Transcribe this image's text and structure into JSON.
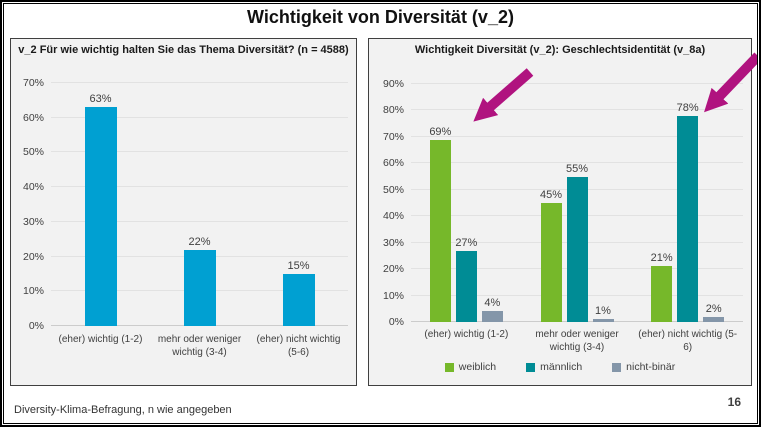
{
  "slide": {
    "title": "Wichtigkeit von Diversität (v_2)",
    "footer_source": "Diversity-Klima-Befragung, n wie angegeben",
    "page_number": "16"
  },
  "colors": {
    "bar_blue": "#00A0D2",
    "series_green": "#76B82A",
    "series_teal": "#008C95",
    "series_gray": "#8496A9",
    "arrow_magenta": "#B0137F",
    "panel_background": "#F2F2F2",
    "text_dark": "#404040"
  },
  "chart_data": [
    {
      "type": "bar",
      "title": "v_2 Für wie wichtig halten Sie das Thema Diversität? (n = 4588)",
      "categories": [
        "(eher) wichtig (1-2)",
        "mehr oder weniger wichtig (3-4)",
        "(eher) nicht wichtig (5-6)"
      ],
      "values": [
        63,
        22,
        15
      ],
      "value_labels": [
        "63%",
        "22%",
        "15%"
      ],
      "unit": "%",
      "bar_color": "#00A0D2",
      "ylim": [
        0,
        70
      ],
      "ytick_step": 10,
      "grid": true,
      "legend_position": "none"
    },
    {
      "type": "bar",
      "title": "Wichtigkeit Diversität (v_2): Geschlechtsidentität (v_8a)",
      "categories": [
        "(eher) wichtig (1-2)",
        "mehr oder weniger wichtig (3-4)",
        "(eher) nicht wichtig (5-6)"
      ],
      "series": [
        {
          "name": "weiblich",
          "color": "#76B82A",
          "values": [
            69,
            45,
            21
          ]
        },
        {
          "name": "männlich",
          "color": "#008C95",
          "values": [
            27,
            55,
            78
          ]
        },
        {
          "name": "nicht-binär",
          "color": "#8496A9",
          "values": [
            4,
            1,
            2
          ]
        }
      ],
      "unit": "%",
      "ylim": [
        0,
        90
      ],
      "ytick_step": 10,
      "grid": true,
      "legend_position": "bottom",
      "annotations": [
        {
          "type": "arrow",
          "color": "#B0137F",
          "target": "weiblich 69% bar"
        },
        {
          "type": "arrow",
          "color": "#B0137F",
          "target": "männlich 78% bar"
        }
      ]
    }
  ]
}
